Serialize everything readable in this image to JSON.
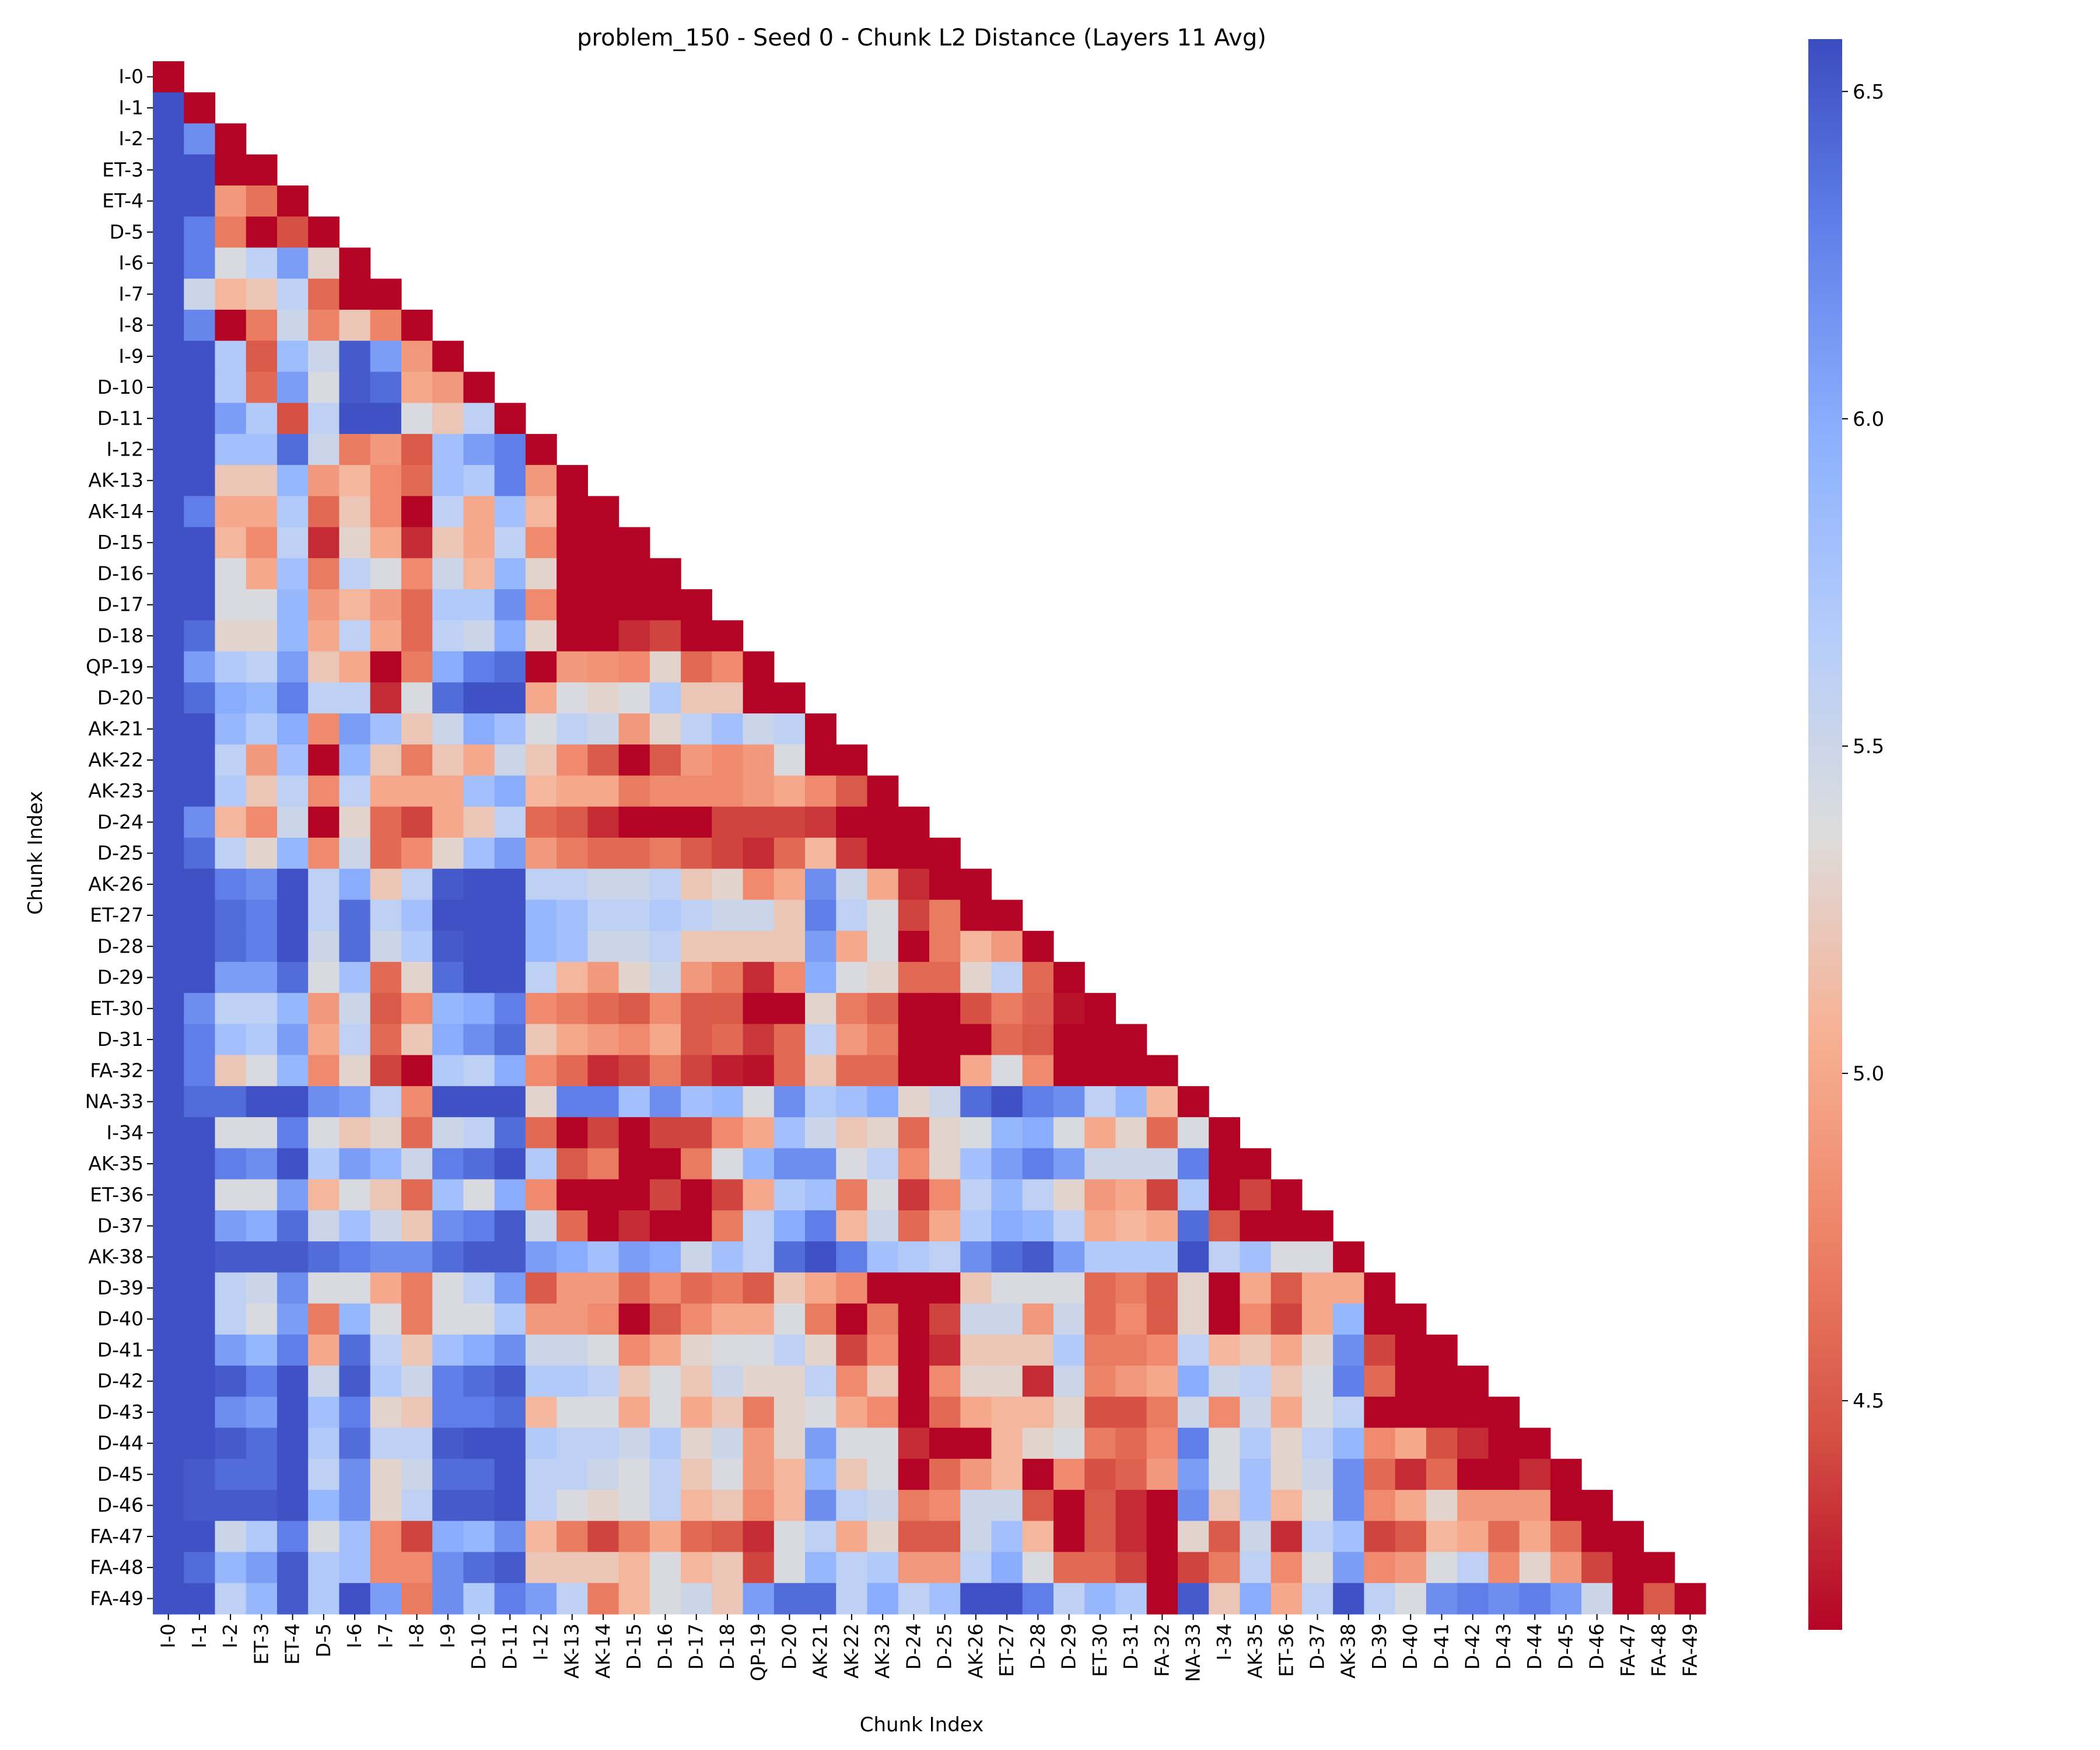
{
  "chart_data": {
    "type": "heatmap",
    "title": "problem_150 - Seed 0 - Chunk L2 Distance (Layers 11 Avg)",
    "xlabel": "Chunk Index",
    "ylabel": "Chunk Index",
    "labels": [
      "I-0",
      "I-1",
      "I-2",
      "ET-3",
      "ET-4",
      "D-5",
      "I-6",
      "I-7",
      "I-8",
      "I-9",
      "D-10",
      "D-11",
      "I-12",
      "AK-13",
      "AK-14",
      "D-15",
      "D-16",
      "D-17",
      "D-18",
      "QP-19",
      "D-20",
      "AK-21",
      "AK-22",
      "AK-23",
      "D-24",
      "D-25",
      "AK-26",
      "ET-27",
      "D-28",
      "D-29",
      "ET-30",
      "D-31",
      "FA-32",
      "NA-33",
      "I-34",
      "AK-35",
      "ET-36",
      "D-37",
      "AK-38",
      "D-39",
      "D-40",
      "D-41",
      "D-42",
      "D-43",
      "D-44",
      "D-45",
      "D-46",
      "FA-47",
      "FA-48",
      "FA-49"
    ],
    "mask": "upper triangle hidden (lower triangle incl. diagonal shown)",
    "colormap": "coolwarm_r",
    "vmin": 4.15,
    "vmax": 6.58,
    "colorbar_ticks": [
      4.5,
      5.0,
      5.5,
      6.0,
      6.5
    ],
    "colorbar_tick_labels": [
      "4.5",
      "5.0",
      "5.5",
      "6.0",
      "6.5"
    ],
    "rows": [
      [
        4.15
      ],
      [
        6.55,
        4.15
      ],
      [
        6.55,
        6.2,
        4.15
      ],
      [
        6.55,
        6.55,
        4.15,
        4.15
      ],
      [
        6.55,
        6.55,
        4.9,
        4.65,
        4.15
      ],
      [
        6.55,
        6.3,
        4.7,
        4.15,
        4.45,
        4.15
      ],
      [
        6.55,
        6.3,
        5.4,
        5.6,
        6.1,
        5.3,
        4.15
      ],
      [
        6.55,
        5.5,
        5.1,
        5.2,
        5.6,
        4.6,
        4.15,
        4.15
      ],
      [
        6.55,
        6.25,
        4.15,
        4.7,
        5.5,
        4.75,
        5.2,
        4.75,
        4.15
      ],
      [
        6.55,
        6.55,
        5.7,
        4.5,
        5.85,
        5.5,
        6.5,
        6.1,
        4.9,
        4.15
      ],
      [
        6.55,
        6.55,
        5.7,
        4.6,
        6.1,
        5.4,
        6.5,
        6.4,
        5.0,
        4.9,
        4.15
      ],
      [
        6.55,
        6.55,
        6.1,
        5.7,
        4.45,
        5.6,
        6.55,
        6.55,
        5.4,
        5.2,
        5.6,
        4.15
      ],
      [
        6.55,
        6.55,
        5.8,
        5.8,
        6.4,
        5.5,
        4.7,
        4.9,
        4.5,
        5.8,
        6.1,
        6.3,
        4.15
      ],
      [
        6.55,
        6.55,
        5.2,
        5.2,
        5.9,
        4.9,
        5.1,
        4.8,
        4.6,
        5.8,
        5.7,
        6.3,
        4.9,
        4.15
      ],
      [
        6.55,
        6.3,
        5.0,
        5.0,
        5.7,
        4.6,
        5.2,
        4.8,
        4.15,
        5.6,
        5.0,
        5.8,
        5.1,
        4.15,
        4.15
      ],
      [
        6.55,
        6.55,
        5.1,
        4.8,
        5.6,
        4.3,
        5.3,
        5.0,
        4.3,
        5.2,
        5.0,
        5.6,
        4.8,
        4.15,
        4.15,
        4.15
      ],
      [
        6.55,
        6.55,
        5.4,
        5.0,
        5.8,
        4.7,
        5.6,
        5.4,
        4.8,
        5.5,
        5.1,
        5.9,
        5.3,
        4.15,
        4.15,
        4.15,
        4.15
      ],
      [
        6.55,
        6.55,
        5.4,
        5.4,
        5.9,
        4.9,
        5.1,
        4.9,
        4.6,
        5.7,
        5.7,
        6.2,
        4.8,
        4.15,
        4.15,
        4.15,
        4.15,
        4.15
      ],
      [
        6.55,
        6.4,
        5.3,
        5.3,
        5.9,
        5.0,
        5.6,
        5.0,
        4.6,
        5.6,
        5.5,
        6.0,
        5.3,
        4.15,
        4.15,
        4.3,
        4.4,
        4.15,
        4.15
      ],
      [
        6.55,
        6.1,
        5.7,
        5.6,
        6.1,
        5.2,
        5.0,
        4.15,
        4.7,
        6.0,
        6.3,
        6.4,
        4.15,
        4.9,
        4.85,
        4.8,
        5.3,
        4.6,
        4.8,
        4.15
      ],
      [
        6.55,
        6.4,
        6.0,
        5.9,
        6.3,
        5.6,
        5.6,
        4.3,
        5.4,
        6.4,
        6.55,
        6.55,
        5.0,
        5.4,
        5.3,
        5.4,
        5.7,
        5.2,
        5.2,
        4.15,
        4.15
      ],
      [
        6.55,
        6.55,
        5.9,
        5.7,
        6.0,
        4.8,
        6.1,
        5.8,
        5.2,
        5.5,
        6.0,
        5.8,
        5.4,
        5.6,
        5.5,
        4.9,
        5.3,
        5.6,
        5.8,
        5.5,
        5.6,
        4.15
      ],
      [
        6.55,
        6.55,
        5.6,
        4.9,
        5.8,
        4.15,
        5.9,
        5.2,
        4.7,
        5.2,
        5.0,
        5.5,
        5.2,
        4.8,
        4.5,
        4.15,
        4.5,
        4.9,
        4.8,
        4.9,
        5.4,
        4.15,
        4.15
      ],
      [
        6.55,
        6.55,
        5.7,
        5.2,
        5.6,
        4.8,
        5.6,
        5.0,
        5.0,
        5.0,
        5.8,
        6.0,
        5.1,
        5.0,
        5.0,
        4.7,
        4.8,
        4.8,
        4.8,
        4.9,
        5.0,
        4.8,
        4.5,
        4.15
      ],
      [
        6.55,
        6.2,
        5.1,
        4.8,
        5.5,
        4.15,
        5.3,
        4.6,
        4.4,
        5.0,
        5.2,
        5.6,
        4.6,
        4.5,
        4.3,
        4.15,
        4.15,
        4.15,
        4.4,
        4.4,
        4.4,
        4.35,
        4.15,
        4.15,
        4.15
      ],
      [
        6.55,
        6.4,
        5.6,
        5.3,
        5.9,
        4.8,
        5.5,
        4.6,
        4.8,
        5.3,
        5.8,
        6.1,
        4.9,
        4.7,
        4.6,
        4.6,
        4.7,
        4.5,
        4.4,
        4.3,
        4.6,
        5.1,
        4.35,
        4.15,
        4.15,
        4.15
      ],
      [
        6.55,
        6.55,
        6.3,
        6.2,
        6.55,
        5.6,
        6.0,
        5.2,
        5.6,
        6.5,
        6.55,
        6.55,
        5.6,
        5.6,
        5.5,
        5.5,
        5.6,
        5.2,
        5.3,
        4.8,
        5.0,
        6.2,
        5.5,
        5.0,
        4.3,
        4.15,
        4.15
      ],
      [
        6.55,
        6.55,
        6.4,
        6.3,
        6.55,
        5.6,
        6.4,
        5.6,
        5.8,
        6.55,
        6.55,
        6.55,
        5.9,
        5.8,
        5.6,
        5.6,
        5.7,
        5.6,
        5.5,
        5.5,
        5.2,
        6.3,
        5.6,
        5.4,
        4.4,
        4.7,
        4.15,
        4.15
      ],
      [
        6.55,
        6.55,
        6.4,
        6.3,
        6.55,
        5.5,
        6.4,
        5.5,
        5.7,
        6.5,
        6.55,
        6.55,
        5.9,
        5.8,
        5.5,
        5.5,
        5.6,
        5.2,
        5.2,
        5.2,
        5.2,
        6.1,
        5.0,
        5.4,
        4.15,
        4.7,
        5.1,
        4.9,
        4.15
      ],
      [
        6.55,
        6.55,
        6.1,
        6.1,
        6.4,
        5.4,
        5.8,
        4.6,
        5.3,
        6.4,
        6.55,
        6.55,
        5.6,
        5.1,
        4.9,
        5.3,
        5.5,
        4.9,
        4.7,
        4.3,
        4.8,
        6.0,
        5.4,
        5.3,
        4.6,
        4.6,
        5.3,
        5.6,
        4.6,
        4.15
      ],
      [
        6.55,
        6.2,
        5.6,
        5.6,
        5.9,
        4.9,
        5.5,
        4.5,
        4.8,
        5.9,
        6.0,
        6.3,
        4.8,
        4.7,
        4.6,
        4.5,
        4.8,
        4.5,
        4.5,
        4.15,
        4.15,
        5.3,
        4.7,
        4.55,
        4.15,
        4.15,
        4.45,
        4.7,
        4.55,
        4.2,
        4.15
      ],
      [
        6.55,
        6.3,
        5.8,
        5.7,
        6.1,
        5.0,
        5.6,
        4.6,
        5.2,
        6.0,
        6.2,
        6.4,
        5.2,
        5.0,
        4.9,
        4.8,
        5.0,
        4.5,
        4.6,
        4.35,
        4.6,
        5.6,
        4.9,
        4.7,
        4.15,
        4.15,
        4.15,
        4.6,
        4.5,
        4.15,
        4.15,
        4.15
      ],
      [
        6.55,
        6.3,
        5.2,
        5.4,
        5.9,
        4.8,
        5.3,
        4.4,
        4.15,
        5.7,
        5.6,
        6.0,
        4.8,
        4.6,
        4.3,
        4.4,
        4.7,
        4.4,
        4.25,
        4.2,
        4.6,
        5.2,
        4.6,
        4.6,
        4.15,
        4.15,
        5.0,
        5.4,
        4.8,
        4.15,
        4.15,
        4.15,
        4.15
      ],
      [
        6.55,
        6.4,
        6.4,
        6.55,
        6.55,
        6.2,
        6.1,
        5.6,
        4.8,
        6.55,
        6.55,
        6.55,
        5.3,
        6.3,
        6.3,
        5.8,
        6.2,
        5.8,
        5.9,
        5.4,
        6.2,
        5.7,
        5.8,
        6.0,
        5.3,
        5.5,
        6.4,
        6.55,
        6.3,
        6.2,
        5.6,
        5.9,
        5.1,
        4.15
      ],
      [
        6.55,
        6.55,
        5.4,
        5.4,
        6.3,
        5.4,
        5.2,
        5.3,
        4.6,
        5.5,
        5.6,
        6.4,
        4.6,
        4.15,
        4.4,
        4.15,
        4.4,
        4.4,
        4.8,
        5.0,
        5.8,
        5.5,
        5.2,
        5.3,
        4.6,
        5.3,
        5.4,
        5.9,
        6.0,
        5.4,
        5.0,
        5.3,
        4.6,
        5.4,
        4.15
      ],
      [
        6.55,
        6.55,
        6.3,
        6.2,
        6.55,
        5.7,
        6.1,
        5.9,
        5.5,
        6.3,
        6.4,
        6.55,
        5.7,
        4.5,
        4.7,
        4.15,
        4.15,
        4.7,
        5.4,
        5.9,
        6.2,
        6.2,
        5.4,
        5.6,
        4.8,
        5.3,
        5.8,
        6.1,
        6.3,
        6.1,
        5.5,
        5.5,
        5.5,
        6.3,
        4.15,
        4.15
      ],
      [
        6.55,
        6.55,
        5.4,
        5.4,
        6.1,
        5.1,
        5.4,
        5.2,
        4.6,
        5.8,
        5.4,
        6.0,
        4.8,
        4.15,
        4.15,
        4.15,
        4.4,
        4.15,
        4.4,
        5.0,
        5.7,
        5.8,
        4.7,
        5.4,
        4.35,
        4.8,
        5.6,
        5.9,
        5.6,
        5.3,
        4.9,
        5.0,
        4.4,
        5.7,
        4.15,
        4.4,
        4.15
      ],
      [
        6.55,
        6.55,
        6.1,
        6.0,
        6.4,
        5.5,
        5.8,
        5.5,
        5.2,
        6.2,
        6.3,
        6.5,
        5.5,
        4.6,
        4.15,
        4.3,
        4.15,
        4.15,
        4.7,
        5.6,
        6.0,
        6.3,
        5.1,
        5.5,
        4.6,
        5.0,
        5.7,
        6.0,
        5.9,
        5.6,
        5.0,
        5.1,
        5.0,
        6.4,
        4.5,
        4.15,
        4.15,
        4.15
      ],
      [
        6.55,
        6.55,
        6.5,
        6.5,
        6.5,
        6.4,
        6.3,
        6.2,
        6.2,
        6.4,
        6.5,
        6.5,
        6.1,
        6.0,
        5.8,
        6.1,
        6.0,
        5.5,
        5.8,
        5.6,
        6.4,
        6.55,
        6.3,
        5.8,
        5.7,
        5.6,
        6.2,
        6.4,
        6.5,
        6.1,
        5.7,
        5.7,
        5.7,
        6.55,
        5.6,
        5.8,
        5.4,
        5.4,
        4.15
      ],
      [
        6.55,
        6.55,
        5.6,
        5.5,
        6.2,
        5.4,
        5.4,
        5.0,
        4.7,
        5.4,
        5.6,
        6.1,
        4.5,
        4.9,
        4.9,
        4.6,
        4.8,
        4.6,
        4.7,
        4.5,
        5.2,
        5.0,
        4.8,
        4.15,
        4.15,
        4.15,
        5.2,
        5.4,
        5.4,
        5.4,
        4.6,
        4.7,
        4.5,
        5.3,
        4.15,
        5.0,
        4.5,
        5.0,
        5.0,
        4.15
      ],
      [
        6.55,
        6.55,
        5.6,
        5.4,
        6.1,
        4.7,
        5.9,
        5.4,
        4.7,
        5.4,
        5.4,
        5.7,
        4.9,
        4.9,
        4.8,
        4.15,
        4.5,
        4.8,
        5.0,
        5.0,
        5.4,
        4.7,
        4.15,
        4.7,
        4.15,
        4.4,
        5.5,
        5.5,
        4.9,
        5.5,
        4.6,
        4.8,
        4.5,
        5.3,
        4.15,
        4.8,
        4.4,
        5.0,
        5.9,
        4.15,
        4.15
      ],
      [
        6.55,
        6.55,
        6.1,
        5.9,
        6.3,
        5.0,
        6.4,
        5.6,
        5.2,
        5.8,
        6.0,
        6.2,
        5.5,
        5.5,
        5.4,
        4.8,
        5.0,
        5.3,
        5.4,
        5.4,
        5.6,
        5.3,
        4.4,
        4.8,
        4.15,
        4.3,
        5.2,
        5.2,
        5.2,
        5.7,
        4.7,
        4.7,
        4.8,
        5.6,
        5.1,
        5.2,
        5.0,
        5.3,
        6.2,
        4.4,
        4.15,
        4.15
      ],
      [
        6.55,
        6.55,
        6.5,
        6.3,
        6.55,
        5.5,
        6.5,
        5.7,
        5.5,
        6.3,
        6.4,
        6.5,
        5.7,
        5.7,
        5.6,
        5.2,
        5.4,
        5.2,
        5.5,
        5.3,
        5.3,
        5.6,
        4.8,
        5.2,
        4.15,
        4.8,
        5.3,
        5.3,
        4.3,
        5.5,
        4.75,
        4.9,
        5.0,
        6.0,
        5.5,
        5.6,
        5.2,
        5.4,
        6.3,
        4.6,
        4.15,
        4.15,
        4.15
      ],
      [
        6.55,
        6.55,
        6.2,
        6.1,
        6.55,
        5.8,
        6.3,
        5.3,
        5.2,
        6.3,
        6.3,
        6.4,
        5.1,
        5.4,
        5.4,
        5.0,
        5.4,
        5.0,
        5.2,
        4.7,
        5.3,
        5.4,
        5.0,
        4.8,
        4.15,
        4.6,
        5.0,
        5.1,
        5.1,
        5.3,
        4.45,
        4.45,
        4.7,
        5.5,
        4.8,
        5.5,
        5.0,
        5.4,
        5.6,
        4.15,
        4.15,
        4.15,
        4.15,
        4.15
      ],
      [
        6.55,
        6.55,
        6.5,
        6.4,
        6.55,
        5.7,
        6.4,
        5.6,
        5.6,
        6.5,
        6.55,
        6.55,
        5.7,
        5.6,
        5.6,
        5.5,
        5.7,
        5.3,
        5.5,
        4.9,
        5.3,
        6.1,
        5.4,
        5.4,
        4.3,
        4.15,
        4.15,
        5.1,
        5.3,
        5.4,
        4.7,
        4.6,
        4.8,
        6.3,
        5.4,
        5.7,
        5.3,
        5.6,
        5.9,
        4.8,
        5.0,
        4.45,
        4.3,
        4.15,
        4.15
      ],
      [
        6.55,
        6.5,
        6.4,
        6.4,
        6.55,
        5.6,
        6.2,
        5.3,
        5.5,
        6.4,
        6.4,
        6.55,
        5.6,
        5.6,
        5.5,
        5.4,
        5.6,
        5.2,
        5.4,
        4.9,
        5.1,
        5.9,
        5.2,
        5.4,
        4.15,
        4.6,
        4.9,
        5.1,
        4.15,
        4.8,
        4.45,
        4.55,
        4.9,
        6.1,
        5.4,
        5.8,
        5.3,
        5.5,
        6.2,
        4.6,
        4.3,
        4.6,
        4.15,
        4.15,
        4.3,
        4.15
      ],
      [
        6.55,
        6.5,
        6.5,
        6.5,
        6.55,
        5.9,
        6.2,
        5.3,
        5.6,
        6.5,
        6.5,
        6.55,
        5.6,
        5.4,
        5.3,
        5.4,
        5.6,
        5.1,
        5.2,
        4.8,
        5.1,
        6.2,
        5.6,
        5.5,
        4.7,
        4.8,
        5.5,
        5.5,
        4.5,
        4.15,
        4.5,
        4.3,
        4.15,
        6.2,
        5.2,
        5.8,
        5.1,
        5.4,
        6.2,
        4.8,
        5.0,
        5.3,
        4.9,
        4.9,
        4.9,
        4.15,
        4.15
      ],
      [
        6.55,
        6.55,
        5.5,
        5.7,
        6.3,
        5.4,
        5.8,
        4.8,
        4.4,
        6.0,
        5.9,
        6.2,
        5.1,
        4.7,
        4.4,
        4.7,
        5.0,
        4.6,
        4.5,
        4.3,
        5.4,
        5.6,
        5.0,
        5.3,
        4.5,
        4.5,
        5.5,
        5.8,
        5.1,
        4.15,
        4.5,
        4.3,
        4.15,
        5.3,
        4.5,
        5.5,
        4.3,
        5.6,
        5.8,
        4.4,
        4.5,
        5.1,
        5.0,
        4.6,
        5.0,
        4.6,
        4.15,
        4.15
      ],
      [
        6.55,
        6.4,
        5.9,
        6.1,
        6.5,
        5.7,
        5.8,
        4.8,
        4.8,
        6.2,
        6.4,
        6.5,
        5.2,
        5.2,
        5.2,
        5.1,
        5.4,
        5.1,
        5.2,
        4.4,
        5.4,
        5.9,
        5.6,
        5.7,
        4.9,
        4.9,
        5.6,
        6.0,
        5.4,
        4.6,
        4.6,
        4.4,
        4.15,
        4.4,
        4.7,
        5.6,
        4.8,
        5.4,
        6.1,
        4.8,
        4.9,
        5.4,
        5.6,
        4.8,
        5.3,
        4.9,
        4.4,
        4.15,
        4.15
      ],
      [
        6.55,
        6.55,
        5.6,
        5.9,
        6.5,
        5.7,
        6.55,
        6.1,
        4.7,
        6.2,
        5.7,
        6.3,
        6.1,
        5.6,
        4.7,
        5.1,
        5.4,
        5.5,
        5.2,
        6.1,
        6.4,
        6.4,
        5.6,
        6.0,
        5.6,
        5.8,
        6.55,
        6.55,
        6.3,
        5.6,
        5.9,
        5.7,
        4.15,
        6.5,
        5.2,
        6.0,
        5.0,
        5.6,
        6.55,
        5.6,
        5.4,
        6.2,
        6.3,
        6.2,
        6.3,
        6.1,
        5.5,
        4.15,
        4.5,
        4.15
      ]
    ]
  }
}
